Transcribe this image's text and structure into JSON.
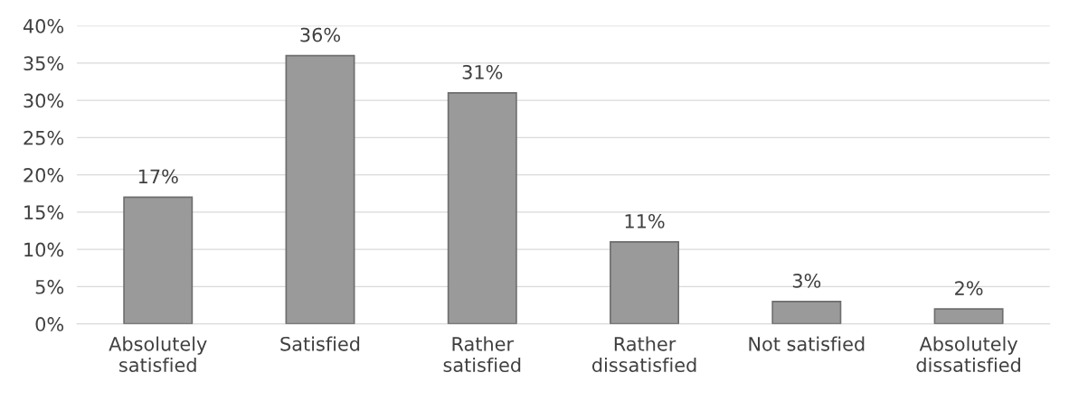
{
  "chart_data": {
    "type": "bar",
    "categories": [
      "Absolutely\nsatisfied",
      "Satisfied",
      "Rather\nsatisfied",
      "Rather\ndissatisfied",
      "Not satisfied",
      "Absolutely\ndissatisfied"
    ],
    "values": [
      17,
      36,
      31,
      11,
      3,
      2
    ],
    "value_labels": [
      "17%",
      "36%",
      "31%",
      "11%",
      "3%",
      "2%"
    ],
    "color": "#9a9a9a",
    "ylim": [
      0,
      40
    ],
    "yticks": [
      {
        "value": 0,
        "label": "0%"
      },
      {
        "value": 5,
        "label": "5%"
      },
      {
        "value": 10,
        "label": "10%"
      },
      {
        "value": 15,
        "label": "15%"
      },
      {
        "value": 20,
        "label": "20%"
      },
      {
        "value": 25,
        "label": "25%"
      },
      {
        "value": 30,
        "label": "30%"
      },
      {
        "value": 35,
        "label": "35%"
      },
      {
        "value": 40,
        "label": "40%"
      }
    ],
    "grid": "y"
  }
}
